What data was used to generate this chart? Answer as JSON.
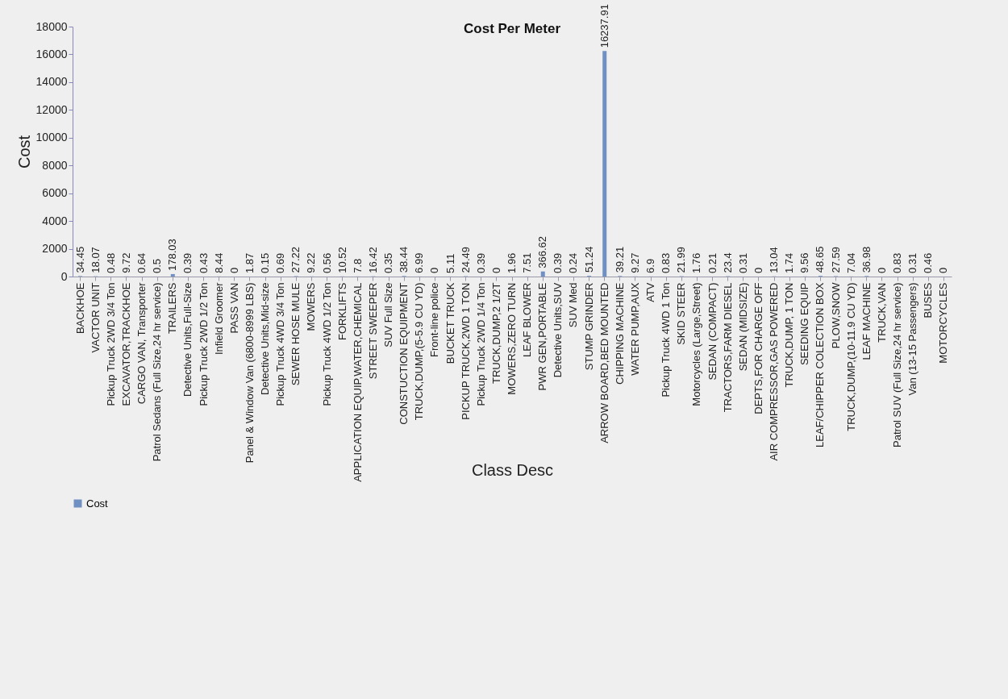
{
  "chart_data": {
    "type": "bar",
    "title": "Cost Per Meter",
    "xlabel": "Class Desc",
    "ylabel": "Cost",
    "categories": [
      "BACKHOE",
      "VACTOR UNIT",
      "Pickup Truck 2WD 3/4 Ton",
      "EXCAVATOR,TRACKHOE",
      "CARGO VAN, Transporter",
      "Patrol Sedans (Full Size,24 hr service)",
      "TRAILERS",
      "Detective Units,Full-Size",
      "Pickup Truck 2WD 1/2 Ton",
      "Infield Groomer",
      "PASS VAN",
      "Panel & Window Van (6800-8999 LBS)",
      "Detective Units,Mid-size",
      "Pickup Truck 4WD 3/4 Ton",
      "SEWER HOSE MULE",
      "MOWERS",
      "Pickup Truck 4WD 1/2 Ton",
      "FORKLIFTS",
      "APPLICATION EQUIP,WATER,CHEMICAL",
      "STREET SWEEPER",
      "SUV Full Size",
      "CONSTUCTION EQUIPMENT",
      "TRUCK,DUMP,(5-5.9 CU YD)",
      "Front-line police",
      "BUCKET TRUCK",
      "PICKUP TRUCK,2WD 1 TON",
      "Pickup Truck 2WD 1/4 Ton",
      "TRUCK,DUMP,2 1/2T",
      "MOWERS,ZERO TURN",
      "LEAF BLOWER",
      "PWR GEN,PORTABLE",
      "Detective Units,SUV",
      "SUV Med",
      "STUMP GRINDER",
      "ARROW BOARD,BED MOUNTED",
      "CHIPPING MACHINE",
      "WATER PUMP,AUX",
      "ATV",
      "Pickup Truck 4WD 1 Ton",
      "SKID STEER",
      "Motorcycles (Large,Street)",
      "SEDAN (COMPACT)",
      "TRACTORS,FARM DIESEL",
      "SEDAN (MIDSIZE)",
      "DEPTS,FOR CHARGE OFF",
      "AIR COMPRESSOR,GAS POWERED",
      "TRUCK,DUMP, 1 TON",
      "SEEDING EQUIP",
      "LEAF/CHIPPER COLECTION BOX",
      "PLOW,SNOW",
      "TRUCK,DUMP,(10-11.9 CU YD)",
      "LEAF MACHINE",
      "TRUCK,VAN",
      "Patrol SUV (Full Size,24 hr service)",
      "Van (13-15 Passengers)",
      "BUSES",
      "MOTORCYCLES"
    ],
    "series": [
      {
        "name": "Cost",
        "color": "#7090c4",
        "values": [
          34.45,
          18.07,
          0.48,
          9.72,
          0.64,
          0.5,
          178.03,
          0.39,
          0.43,
          8.44,
          0,
          1.87,
          0.15,
          0.69,
          27.22,
          9.22,
          0.56,
          10.52,
          7.8,
          16.42,
          0.35,
          38.44,
          6.99,
          0,
          5.11,
          24.49,
          0.39,
          0,
          1.96,
          7.51,
          366.62,
          0.39,
          0.24,
          51.24,
          16237.91,
          39.21,
          9.27,
          6.9,
          0.83,
          21.99,
          1.76,
          0.21,
          23.4,
          0.31,
          0,
          13.04,
          1.74,
          9.56,
          48.65,
          27.59,
          7.04,
          36.98,
          0,
          0.83,
          0.31,
          0.46,
          0
        ]
      }
    ],
    "ylim": [
      0,
      18000
    ],
    "yticks": [
      0,
      2000,
      4000,
      6000,
      8000,
      10000,
      12000,
      14000,
      16000,
      18000
    ],
    "data_labels": true,
    "legend": "bottom",
    "grid": false
  }
}
